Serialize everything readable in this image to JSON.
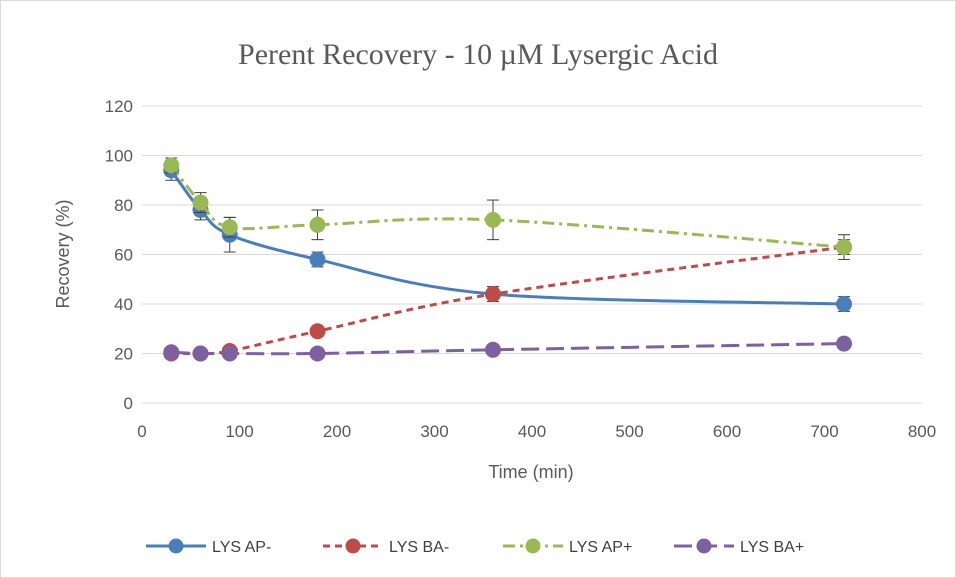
{
  "chart_data": {
    "type": "line",
    "title": "Perent Recovery - 10 µM Lysergic Acid",
    "xlabel": "Time (min)",
    "ylabel": "Recovery (%)",
    "xlim": [
      0,
      800
    ],
    "ylim": [
      0,
      120
    ],
    "x_ticks": [
      0,
      100,
      200,
      300,
      400,
      500,
      600,
      700,
      800
    ],
    "y_ticks": [
      0,
      20,
      40,
      60,
      80,
      100,
      120
    ],
    "grid": "horizontal",
    "legend_position": "bottom",
    "series": [
      {
        "name": "LYS AP-",
        "color": "#4a7ebb",
        "line_style": "solid",
        "smooth": true,
        "points": [
          {
            "x": 30,
            "y": 94,
            "err": 4
          },
          {
            "x": 60,
            "y": 78,
            "err": 4
          },
          {
            "x": 90,
            "y": 68,
            "err": 7
          },
          {
            "x": 180,
            "y": 58,
            "err": 3
          },
          {
            "x": 360,
            "y": 44,
            "err": 3
          },
          {
            "x": 720,
            "y": 40,
            "err": 3
          }
        ]
      },
      {
        "name": "LYS BA-",
        "color": "#be4b48",
        "line_style": "short-dash",
        "smooth": true,
        "points": [
          {
            "x": 30,
            "y": 20,
            "err": 0
          },
          {
            "x": 60,
            "y": 20,
            "err": 0
          },
          {
            "x": 90,
            "y": 21,
            "err": 0
          },
          {
            "x": 180,
            "y": 29,
            "err": 0
          },
          {
            "x": 360,
            "y": 44,
            "err": 3
          },
          {
            "x": 720,
            "y": 63,
            "err": 3
          }
        ]
      },
      {
        "name": "LYS AP+",
        "color": "#98b954",
        "line_style": "dash-dot",
        "smooth": true,
        "points": [
          {
            "x": 30,
            "y": 96,
            "err": 3
          },
          {
            "x": 60,
            "y": 81,
            "err": 4
          },
          {
            "x": 90,
            "y": 71,
            "err": 4
          },
          {
            "x": 180,
            "y": 72,
            "err": 6
          },
          {
            "x": 360,
            "y": 74,
            "err": 8
          },
          {
            "x": 720,
            "y": 63,
            "err": 5
          }
        ]
      },
      {
        "name": "LYS BA+",
        "color": "#7d60a0",
        "line_style": "long-dash",
        "smooth": true,
        "points": [
          {
            "x": 30,
            "y": 20.5,
            "err": 0
          },
          {
            "x": 60,
            "y": 20,
            "err": 0
          },
          {
            "x": 90,
            "y": 20,
            "err": 0
          },
          {
            "x": 180,
            "y": 20,
            "err": 0
          },
          {
            "x": 360,
            "y": 21.5,
            "err": 0
          },
          {
            "x": 720,
            "y": 24,
            "err": 0
          }
        ]
      }
    ]
  },
  "colors": {
    "gridline": "#d9d9d9",
    "axis_text": "#595959",
    "error_bar": "#404040"
  }
}
